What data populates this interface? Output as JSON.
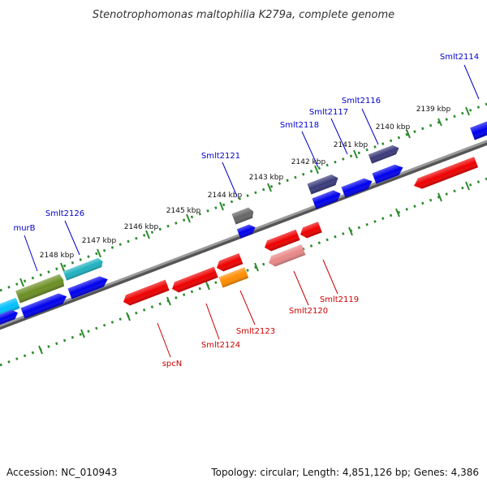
{
  "title": "Stenotrophomonas maltophilia K279a, complete genome",
  "footer": {
    "accession": "Accession: NC_010943",
    "topology": "Topology: circular; Length: 4,851,126 bp; Genes: 4,386"
  },
  "colors": {
    "backbone": "#888888",
    "tick_dots": "#2e8b2e",
    "label_forward": "#0000cc",
    "label_reverse": "#cc0000",
    "gene_blue": "#0000ee",
    "gene_red": "#ee0000",
    "gene_navy": "#3a3a7a",
    "gene_gray": "#666666",
    "gene_orange": "#ff8c00",
    "gene_pink": "#e88888",
    "gene_olive": "#6b8e23",
    "gene_teal": "#20b2c0",
    "gene_cyan": "#00bfff"
  },
  "ticks": [
    "2139 kbp",
    "2140 kbp",
    "2141 kbp",
    "2142 kbp",
    "2143 kbp",
    "2144 kbp",
    "2145 kbp",
    "2146 kbp",
    "2147 kbp",
    "2148 kbp"
  ],
  "forward_labels": [
    "Smlt2114",
    "Smlt2116",
    "Smlt2117",
    "Smlt2118",
    "Smlt2121",
    "Smlt2126",
    "murB"
  ],
  "reverse_labels": [
    "Smlt2119",
    "Smlt2120",
    "Smlt2123",
    "Smlt2124",
    "spcN"
  ]
}
